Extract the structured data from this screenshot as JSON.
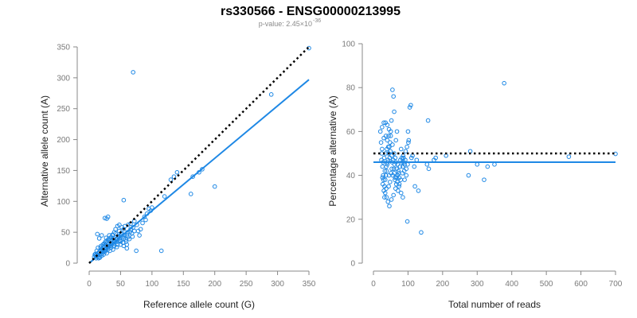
{
  "header": {
    "title": "rs330566 - ENSG00000213995",
    "pvalue_prefix": "p-value: 2.45×10",
    "pvalue_exponent": "-36"
  },
  "colors": {
    "points": "#1e88e5",
    "fit": "#1e88e5",
    "reference": "#000000",
    "axis": "#888888"
  },
  "chart_data": [
    {
      "type": "scatter",
      "xlabel": "Reference allele count (G)",
      "ylabel": "Alternative allele count (A)",
      "xlim": [
        0,
        350
      ],
      "ylim": [
        0,
        350
      ],
      "xticks": [
        0,
        50,
        100,
        150,
        200,
        250,
        300,
        350
      ],
      "yticks": [
        0,
        50,
        100,
        150,
        200,
        250,
        300,
        350
      ],
      "reference_line": {
        "style": "dotted",
        "x": [
          0,
          350
        ],
        "y": [
          0,
          350
        ]
      },
      "fit_line": {
        "style": "solid",
        "x": [
          0,
          350
        ],
        "y": [
          0,
          297
        ]
      },
      "points": [
        [
          350,
          348
        ],
        [
          290,
          273
        ],
        [
          70,
          309
        ],
        [
          140,
          147
        ],
        [
          135,
          140
        ],
        [
          130,
          135
        ],
        [
          175,
          147
        ],
        [
          180,
          152
        ],
        [
          165,
          140
        ],
        [
          200,
          124
        ],
        [
          162,
          112
        ],
        [
          120,
          108
        ],
        [
          100,
          90
        ],
        [
          95,
          88
        ],
        [
          98,
          85
        ],
        [
          92,
          80
        ],
        [
          90,
          70
        ],
        [
          88,
          75
        ],
        [
          85,
          65
        ],
        [
          55,
          102
        ],
        [
          30,
          75
        ],
        [
          25,
          73
        ],
        [
          28,
          72
        ],
        [
          80,
          45
        ],
        [
          75,
          20
        ],
        [
          115,
          20
        ],
        [
          60,
          30
        ],
        [
          55,
          55
        ],
        [
          52,
          48
        ],
        [
          48,
          52
        ],
        [
          45,
          60
        ],
        [
          42,
          55
        ],
        [
          40,
          50
        ],
        [
          38,
          45
        ],
        [
          35,
          42
        ],
        [
          32,
          40
        ],
        [
          30,
          38
        ],
        [
          28,
          35
        ],
        [
          26,
          30
        ],
        [
          24,
          28
        ],
        [
          22,
          25
        ],
        [
          20,
          22
        ],
        [
          18,
          20
        ],
        [
          16,
          18
        ],
        [
          14,
          16
        ],
        [
          12,
          14
        ],
        [
          10,
          12
        ],
        [
          15,
          10
        ],
        [
          20,
          15
        ],
        [
          25,
          20
        ],
        [
          30,
          25
        ],
        [
          35,
          30
        ],
        [
          40,
          35
        ],
        [
          45,
          40
        ],
        [
          50,
          45
        ],
        [
          55,
          40
        ],
        [
          60,
          45
        ],
        [
          65,
          50
        ],
        [
          50,
          35
        ],
        [
          45,
          30
        ],
        [
          40,
          28
        ],
        [
          35,
          25
        ],
        [
          30,
          22
        ],
        [
          25,
          18
        ],
        [
          20,
          12
        ],
        [
          15,
          8
        ],
        [
          18,
          25
        ],
        [
          22,
          30
        ],
        [
          26,
          35
        ],
        [
          33,
          37
        ],
        [
          37,
          32
        ],
        [
          43,
          38
        ],
        [
          47,
          42
        ],
        [
          53,
          43
        ],
        [
          58,
          38
        ],
        [
          62,
          42
        ],
        [
          68,
          48
        ],
        [
          72,
          52
        ],
        [
          12,
          20
        ],
        [
          10,
          15
        ],
        [
          14,
          25
        ],
        [
          8,
          10
        ],
        [
          11,
          8
        ],
        [
          17,
          14
        ],
        [
          21,
          18
        ],
        [
          27,
          24
        ],
        [
          31,
          27
        ],
        [
          36,
          33
        ],
        [
          41,
          36
        ],
        [
          46,
          44
        ],
        [
          51,
          47
        ],
        [
          56,
          46
        ],
        [
          61,
          50
        ],
        [
          66,
          55
        ],
        [
          44,
          26
        ],
        [
          38,
          22
        ],
        [
          33,
          20
        ],
        [
          28,
          16
        ],
        [
          23,
          14
        ],
        [
          19,
          28
        ],
        [
          24,
          32
        ],
        [
          29,
          33
        ],
        [
          34,
          28
        ],
        [
          39,
          31
        ],
        [
          49,
          37
        ],
        [
          54,
          33
        ],
        [
          59,
          35
        ],
        [
          64,
          39
        ],
        [
          69,
          43
        ],
        [
          42,
          48
        ],
        [
          37,
          46
        ],
        [
          32,
          45
        ],
        [
          27,
          41
        ],
        [
          16,
          40
        ],
        [
          20,
          45
        ],
        [
          13,
          47
        ],
        [
          57,
          60
        ],
        [
          48,
          62
        ],
        [
          52,
          58
        ],
        [
          62,
          62
        ],
        [
          70,
          58
        ],
        [
          78,
          52
        ],
        [
          82,
          55
        ],
        [
          76,
          62
        ],
        [
          72,
          68
        ],
        [
          66,
          64
        ],
        [
          9,
          14
        ],
        [
          13,
          11
        ],
        [
          17,
          9
        ],
        [
          22,
          20
        ],
        [
          26,
          22
        ],
        [
          31,
          30
        ],
        [
          36,
          38
        ],
        [
          39,
          40
        ],
        [
          43,
          34
        ],
        [
          47,
          35
        ],
        [
          50,
          30
        ],
        [
          55,
          28
        ],
        [
          60,
          24
        ]
      ]
    },
    {
      "type": "scatter",
      "xlabel": "Total number of reads",
      "ylabel": "Percentage alternative (A)",
      "xlim": [
        0,
        700
      ],
      "ylim": [
        0,
        100
      ],
      "xticks": [
        0,
        100,
        200,
        300,
        400,
        500,
        600,
        700
      ],
      "yticks": [
        0,
        20,
        40,
        60,
        80,
        100
      ],
      "reference_line": {
        "style": "dotted",
        "x": [
          0,
          700
        ],
        "y": [
          50,
          50
        ]
      },
      "fit_line": {
        "style": "solid",
        "x": [
          0,
          700
        ],
        "y": [
          46,
          46
        ]
      },
      "points": [
        [
          700,
          49.8
        ],
        [
          565,
          48.5
        ],
        [
          378,
          82
        ],
        [
          280,
          51
        ],
        [
          275,
          40
        ],
        [
          330,
          44
        ],
        [
          320,
          38
        ],
        [
          350,
          45
        ],
        [
          300,
          45
        ],
        [
          210,
          49
        ],
        [
          180,
          48
        ],
        [
          175,
          47
        ],
        [
          160,
          43
        ],
        [
          155,
          45
        ],
        [
          158,
          65
        ],
        [
          138,
          14
        ],
        [
          130,
          33
        ],
        [
          120,
          35
        ],
        [
          108,
          72
        ],
        [
          105,
          71
        ],
        [
          110,
          48
        ],
        [
          102,
          56
        ],
        [
          100,
          60
        ],
        [
          98,
          19
        ],
        [
          95,
          40
        ],
        [
          90,
          45
        ],
        [
          88,
          46
        ],
        [
          85,
          44
        ],
        [
          80,
          52
        ],
        [
          82,
          48
        ],
        [
          75,
          39
        ],
        [
          72,
          42
        ],
        [
          70,
          45
        ],
        [
          68,
          60
        ],
        [
          65,
          56
        ],
        [
          63,
          48
        ],
        [
          60,
          69
        ],
        [
          58,
          76
        ],
        [
          55,
          79
        ],
        [
          52,
          65
        ],
        [
          50,
          60
        ],
        [
          48,
          55
        ],
        [
          46,
          53
        ],
        [
          44,
          50
        ],
        [
          42,
          47
        ],
        [
          40,
          45
        ],
        [
          38,
          42
        ],
        [
          36,
          40
        ],
        [
          34,
          38
        ],
        [
          32,
          35
        ],
        [
          30,
          33
        ],
        [
          28,
          40
        ],
        [
          26,
          44
        ],
        [
          24,
          50
        ],
        [
          22,
          55
        ],
        [
          20,
          60
        ],
        [
          25,
          62
        ],
        [
          30,
          64
        ],
        [
          35,
          64
        ],
        [
          40,
          63
        ],
        [
          45,
          61
        ],
        [
          50,
          58
        ],
        [
          55,
          54
        ],
        [
          60,
          50
        ],
        [
          65,
          46
        ],
        [
          70,
          40
        ],
        [
          75,
          36
        ],
        [
          80,
          32
        ],
        [
          85,
          30
        ],
        [
          90,
          38
        ],
        [
          95,
          43
        ],
        [
          42,
          28
        ],
        [
          38,
          30
        ],
        [
          34,
          32
        ],
        [
          46,
          26
        ],
        [
          52,
          29
        ],
        [
          58,
          31
        ],
        [
          64,
          34
        ],
        [
          33,
          42
        ],
        [
          37,
          44
        ],
        [
          41,
          46
        ],
        [
          47,
          48
        ],
        [
          53,
          49
        ],
        [
          57,
          47
        ],
        [
          61,
          45
        ],
        [
          67,
          43
        ],
        [
          73,
          41
        ],
        [
          77,
          44
        ],
        [
          83,
          46
        ],
        [
          87,
          48
        ],
        [
          93,
          51
        ],
        [
          97,
          53
        ],
        [
          101,
          55
        ],
        [
          113,
          49
        ],
        [
          118,
          44
        ],
        [
          125,
          47
        ],
        [
          28,
          46
        ],
        [
          31,
          48
        ],
        [
          35,
          50
        ],
        [
          39,
          52
        ],
        [
          43,
          53
        ],
        [
          49,
          51
        ],
        [
          54,
          46
        ],
        [
          59,
          43
        ],
        [
          63,
          39
        ],
        [
          69,
          37
        ],
        [
          74,
          35
        ],
        [
          79,
          38
        ],
        [
          84,
          41
        ],
        [
          89,
          42
        ],
        [
          27,
          36
        ],
        [
          29,
          38
        ],
        [
          44,
          35
        ],
        [
          48,
          37
        ],
        [
          51,
          41
        ],
        [
          56,
          40
        ],
        [
          62,
          38
        ],
        [
          66,
          36
        ],
        [
          71,
          33
        ],
        [
          78,
          47
        ],
        [
          86,
          49
        ],
        [
          92,
          47
        ],
        [
          99,
          45
        ],
        [
          40,
          56
        ],
        [
          44,
          58
        ],
        [
          36,
          58
        ],
        [
          30,
          57
        ],
        [
          25,
          52
        ],
        [
          23,
          47
        ],
        [
          26,
          39
        ],
        [
          32,
          30
        ],
        [
          37,
          34
        ],
        [
          45,
          40
        ],
        [
          53,
          43
        ],
        [
          60,
          41
        ],
        [
          67,
          39
        ]
      ]
    }
  ]
}
